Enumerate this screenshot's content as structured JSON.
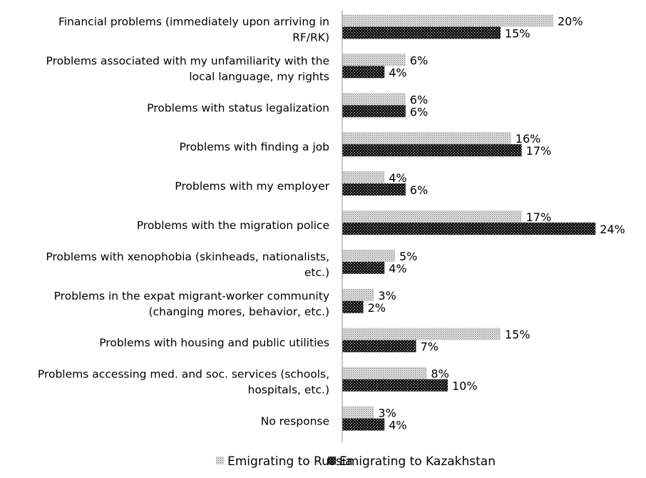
{
  "chart_data": {
    "type": "bar",
    "orientation": "horizontal",
    "categories": [
      "Financial problems (immediately upon arriving in RF/RK)",
      "Problems associated with my unfamiliarity with the local language, my rights",
      "Problems with status legalization",
      "Problems with finding a job",
      "Problems with my employer",
      "Problems with the migration police",
      "Problems with xenophobia (skinheads, nationalists, etc.)",
      "Problems in the expat migrant-worker community (changing mores, behavior, etc.)",
      "Problems with housing and public utilities",
      "Problems accessing med. and soc. services (schools, hospitals, etc.)",
      "No response"
    ],
    "category_lines": [
      [
        "Financial problems (immediately upon arriving in",
        "RF/RK)"
      ],
      [
        "Problems associated with my unfamiliarity with the",
        "local language, my rights"
      ],
      [
        "Problems with status legalization"
      ],
      [
        "Problems with finding a job"
      ],
      [
        "Problems with my employer"
      ],
      [
        "Problems with the migration police"
      ],
      [
        "Problems with xenophobia (skinheads, nationalists,",
        "etc.)"
      ],
      [
        "Problems in the expat migrant-worker community",
        "(changing mores, behavior, etc.)"
      ],
      [
        "Problems with housing and public utilities"
      ],
      [
        "Problems accessing med. and soc. services (schools,",
        "hospitals, etc.)"
      ],
      [
        "No response"
      ]
    ],
    "series": [
      {
        "name": "Emigrating to Russia",
        "values": [
          20,
          6,
          6,
          16,
          4,
          17,
          5,
          3,
          15,
          8,
          3
        ],
        "labels": [
          "20%",
          "6%",
          "6%",
          "16%",
          "4%",
          "17%",
          "5%",
          "3%",
          "15%",
          "8%",
          "3%"
        ],
        "pattern": "light-dotted"
      },
      {
        "name": "Emigrating to Kazakhstan",
        "values": [
          15,
          4,
          6,
          17,
          6,
          24,
          4,
          2,
          7,
          10,
          4
        ],
        "labels": [
          "15%",
          "4%",
          "6%",
          "17%",
          "6%",
          "24%",
          "4%",
          "2%",
          "7%",
          "10%",
          "4%"
        ],
        "pattern": "dark-dotted"
      }
    ],
    "unit": "%",
    "grid": false,
    "legend": "bottom",
    "colors": {
      "light": "#d0d0d0",
      "dark": "#1a1a1a"
    }
  }
}
